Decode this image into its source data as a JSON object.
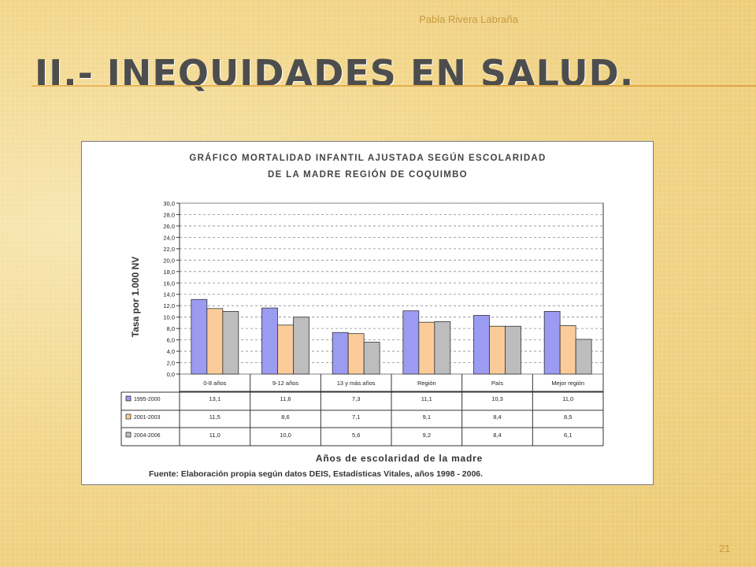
{
  "slide": {
    "author": "Pabla Rivera Labraña",
    "title": "II.- INEQUIDADES EN SALUD.",
    "page_number": "21"
  },
  "colors": {
    "series_1995_2000": "#9b9bf2",
    "series_2001_2003": "#fbcc9a",
    "series_2004_2006": "#bdbdbd",
    "title_text": "#4d4d4d",
    "accent": "#c69a43"
  },
  "chart_data": {
    "type": "bar",
    "title_line1": "GRÁFICO MORTALIDAD INFANTIL AJUSTADA SEGÚN ESCOLARIDAD",
    "title_line2": "DE LA MADRE REGIÓN DE COQUIMBO",
    "ylabel": "Tasa por 1.000 NV",
    "xlabel": "Años de escolaridad de la madre",
    "source": "Fuente: Elaboración propia según datos DEIS, Estadísticas Vitales, años 1998 - 2006.",
    "ylim": [
      0,
      30
    ],
    "yticks": [
      "0,0",
      "2,0",
      "4,0",
      "6,0",
      "8,0",
      "10,0",
      "12,0",
      "14,0",
      "16,0",
      "18,0",
      "20,0",
      "22,0",
      "24,0",
      "26,0",
      "28,0",
      "30,0"
    ],
    "grid": true,
    "categories": [
      "0-8 años",
      "9-12 años",
      "13 y más años",
      "Región",
      "País",
      "Mejor región"
    ],
    "series": [
      {
        "name": "1995-2000",
        "values": [
          13.1,
          11.6,
          7.3,
          11.1,
          10.3,
          11.0
        ],
        "labels": [
          "13,1",
          "11,6",
          "7,3",
          "11,1",
          "10,3",
          "11,0"
        ]
      },
      {
        "name": "2001-2003",
        "values": [
          11.5,
          8.6,
          7.1,
          9.1,
          8.4,
          8.5
        ],
        "labels": [
          "11,5",
          "8,6",
          "7,1",
          "9,1",
          "8,4",
          "8,5"
        ]
      },
      {
        "name": "2004-2006",
        "values": [
          11.0,
          10.0,
          5.6,
          9.2,
          8.4,
          6.1
        ],
        "labels": [
          "11,0",
          "10,0",
          "5,6",
          "9,2",
          "8,4",
          "6,1"
        ]
      }
    ]
  }
}
